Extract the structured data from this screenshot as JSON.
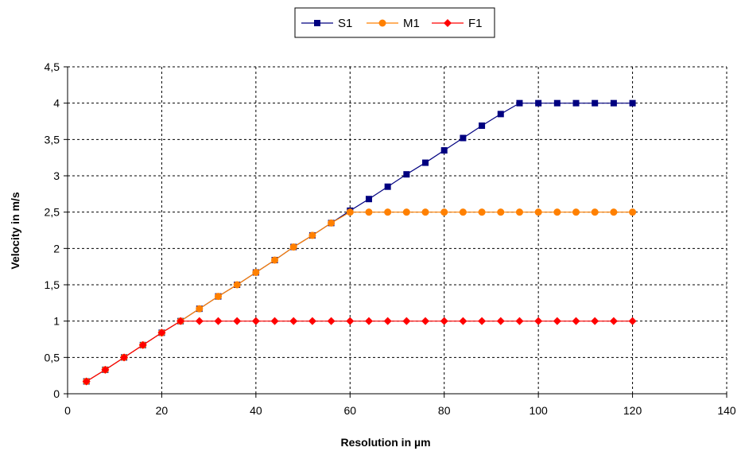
{
  "chart_data": {
    "type": "line",
    "title": "",
    "xlabel": "Resolution in µm",
    "ylabel": "Velocity in m/s",
    "xlim": [
      0,
      140
    ],
    "ylim": [
      0,
      4.5
    ],
    "x_ticks": [
      "0",
      "20",
      "40",
      "60",
      "80",
      "100",
      "120",
      "140"
    ],
    "y_ticks": [
      "0",
      "0,5",
      "1",
      "1,5",
      "2",
      "2,5",
      "3",
      "3,5",
      "4",
      "4,5"
    ],
    "grid": true,
    "legend_position": "top",
    "series": [
      {
        "name": "S1",
        "color": "#000080",
        "marker": "square",
        "x": [
          4,
          8,
          12,
          16,
          20,
          24,
          28,
          32,
          36,
          40,
          44,
          48,
          52,
          56,
          60,
          64,
          68,
          72,
          76,
          80,
          84,
          88,
          92,
          96,
          100,
          104,
          108,
          112,
          116,
          120
        ],
        "y": [
          0.17,
          0.33,
          0.5,
          0.67,
          0.84,
          1.0,
          1.17,
          1.34,
          1.5,
          1.67,
          1.84,
          2.02,
          2.18,
          2.35,
          2.52,
          2.68,
          2.85,
          3.02,
          3.18,
          3.35,
          3.52,
          3.69,
          3.85,
          4.0,
          4.0,
          4.0,
          4.0,
          4.0,
          4.0,
          4.0
        ]
      },
      {
        "name": "M1",
        "color": "#ff8000",
        "marker": "circle",
        "x": [
          4,
          8,
          12,
          16,
          20,
          24,
          28,
          32,
          36,
          40,
          44,
          48,
          52,
          56,
          60,
          64,
          68,
          72,
          76,
          80,
          84,
          88,
          92,
          96,
          100,
          104,
          108,
          112,
          116,
          120
        ],
        "y": [
          0.17,
          0.33,
          0.5,
          0.67,
          0.84,
          1.0,
          1.17,
          1.34,
          1.5,
          1.67,
          1.84,
          2.02,
          2.18,
          2.35,
          2.5,
          2.5,
          2.5,
          2.5,
          2.5,
          2.5,
          2.5,
          2.5,
          2.5,
          2.5,
          2.5,
          2.5,
          2.5,
          2.5,
          2.5,
          2.5
        ]
      },
      {
        "name": "F1",
        "color": "#ff0000",
        "marker": "diamond",
        "x": [
          4,
          8,
          12,
          16,
          20,
          24,
          28,
          32,
          36,
          40,
          44,
          48,
          52,
          56,
          60,
          64,
          68,
          72,
          76,
          80,
          84,
          88,
          92,
          96,
          100,
          104,
          108,
          112,
          116,
          120
        ],
        "y": [
          0.17,
          0.33,
          0.5,
          0.67,
          0.84,
          1.0,
          1.0,
          1.0,
          1.0,
          1.0,
          1.0,
          1.0,
          1.0,
          1.0,
          1.0,
          1.0,
          1.0,
          1.0,
          1.0,
          1.0,
          1.0,
          1.0,
          1.0,
          1.0,
          1.0,
          1.0,
          1.0,
          1.0,
          1.0,
          1.0
        ]
      }
    ]
  }
}
